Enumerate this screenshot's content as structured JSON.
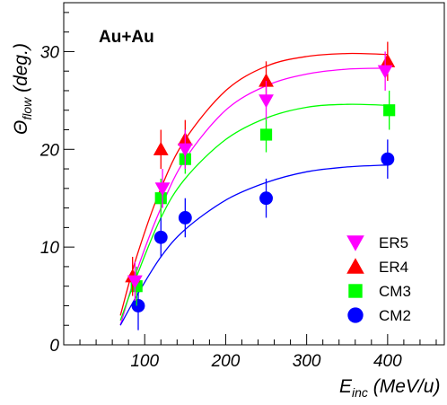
{
  "chart_data": {
    "type": "scatter",
    "title": "",
    "annotation": "Au+Au",
    "xlabel": {
      "main": "E",
      "sub": "inc",
      "rest": " (MeV/u)"
    },
    "ylabel": {
      "main": "Θ",
      "sub": "flow",
      "rest": " (deg.)"
    },
    "xlim": [
      0,
      470
    ],
    "ylim": [
      0,
      35
    ],
    "x_ticks": [
      "100",
      "200",
      "300",
      "400"
    ],
    "y_ticks": [
      "0",
      "10",
      "20",
      "30"
    ],
    "grid": false,
    "legend_position": "bottom-right",
    "series": [
      {
        "name": "ER5",
        "marker": "triangle-down",
        "color": "#ff00ff",
        "points": [
          {
            "x": 88,
            "y": 6.5,
            "err": 2.0
          },
          {
            "x": 122,
            "y": 16,
            "err": 2.0
          },
          {
            "x": 150,
            "y": 20,
            "err": 2.0
          },
          {
            "x": 250,
            "y": 25,
            "err": 2.0
          },
          {
            "x": 397,
            "y": 28,
            "err": 2.0
          }
        ],
        "fit": [
          [
            70,
            2.0
          ],
          [
            90,
            7.5
          ],
          [
            120,
            14.0
          ],
          [
            150,
            19.0
          ],
          [
            200,
            24.0
          ],
          [
            250,
            26.5
          ],
          [
            300,
            27.7
          ],
          [
            350,
            28.2
          ],
          [
            400,
            28.3
          ]
        ]
      },
      {
        "name": "ER4",
        "marker": "triangle-up",
        "color": "#ff0000",
        "points": [
          {
            "x": 85,
            "y": 7,
            "err": 2.0
          },
          {
            "x": 120,
            "y": 20,
            "err": 2.0
          },
          {
            "x": 150,
            "y": 21,
            "err": 2.0
          },
          {
            "x": 250,
            "y": 27,
            "err": 2.0
          },
          {
            "x": 400,
            "y": 29,
            "err": 2.0
          }
        ],
        "fit": [
          [
            70,
            3.0
          ],
          [
            90,
            9.0
          ],
          [
            120,
            16.0
          ],
          [
            150,
            21.0
          ],
          [
            200,
            26.0
          ],
          [
            250,
            28.5
          ],
          [
            300,
            29.5
          ],
          [
            350,
            29.8
          ],
          [
            400,
            29.7
          ]
        ]
      },
      {
        "name": "CM3",
        "marker": "square",
        "color": "#00ff00",
        "points": [
          {
            "x": 90,
            "y": 6,
            "err": 2.0
          },
          {
            "x": 120,
            "y": 15,
            "err": 2.0
          },
          {
            "x": 150,
            "y": 19,
            "err": 1.5
          },
          {
            "x": 250,
            "y": 21.5,
            "err": 1.8
          },
          {
            "x": 402,
            "y": 24,
            "err": 2.0
          }
        ],
        "fit": [
          [
            70,
            2.5
          ],
          [
            90,
            7.0
          ],
          [
            120,
            13.0
          ],
          [
            150,
            17.0
          ],
          [
            200,
            21.0
          ],
          [
            250,
            23.2
          ],
          [
            300,
            24.3
          ],
          [
            350,
            24.6
          ],
          [
            400,
            24.5
          ]
        ]
      },
      {
        "name": "CM2",
        "marker": "circle",
        "color": "#0000ff",
        "points": [
          {
            "x": 92,
            "y": 4,
            "err": 2.5
          },
          {
            "x": 120,
            "y": 11,
            "err": 2.0
          },
          {
            "x": 150,
            "y": 13,
            "err": 2.0
          },
          {
            "x": 250,
            "y": 15,
            "err": 2.0
          },
          {
            "x": 400,
            "y": 19,
            "err": 2.0
          }
        ],
        "fit": [
          [
            70,
            2.0
          ],
          [
            90,
            5.0
          ],
          [
            120,
            9.0
          ],
          [
            150,
            11.8
          ],
          [
            200,
            14.8
          ],
          [
            250,
            16.6
          ],
          [
            300,
            17.7
          ],
          [
            350,
            18.2
          ],
          [
            400,
            18.4
          ]
        ]
      }
    ]
  }
}
